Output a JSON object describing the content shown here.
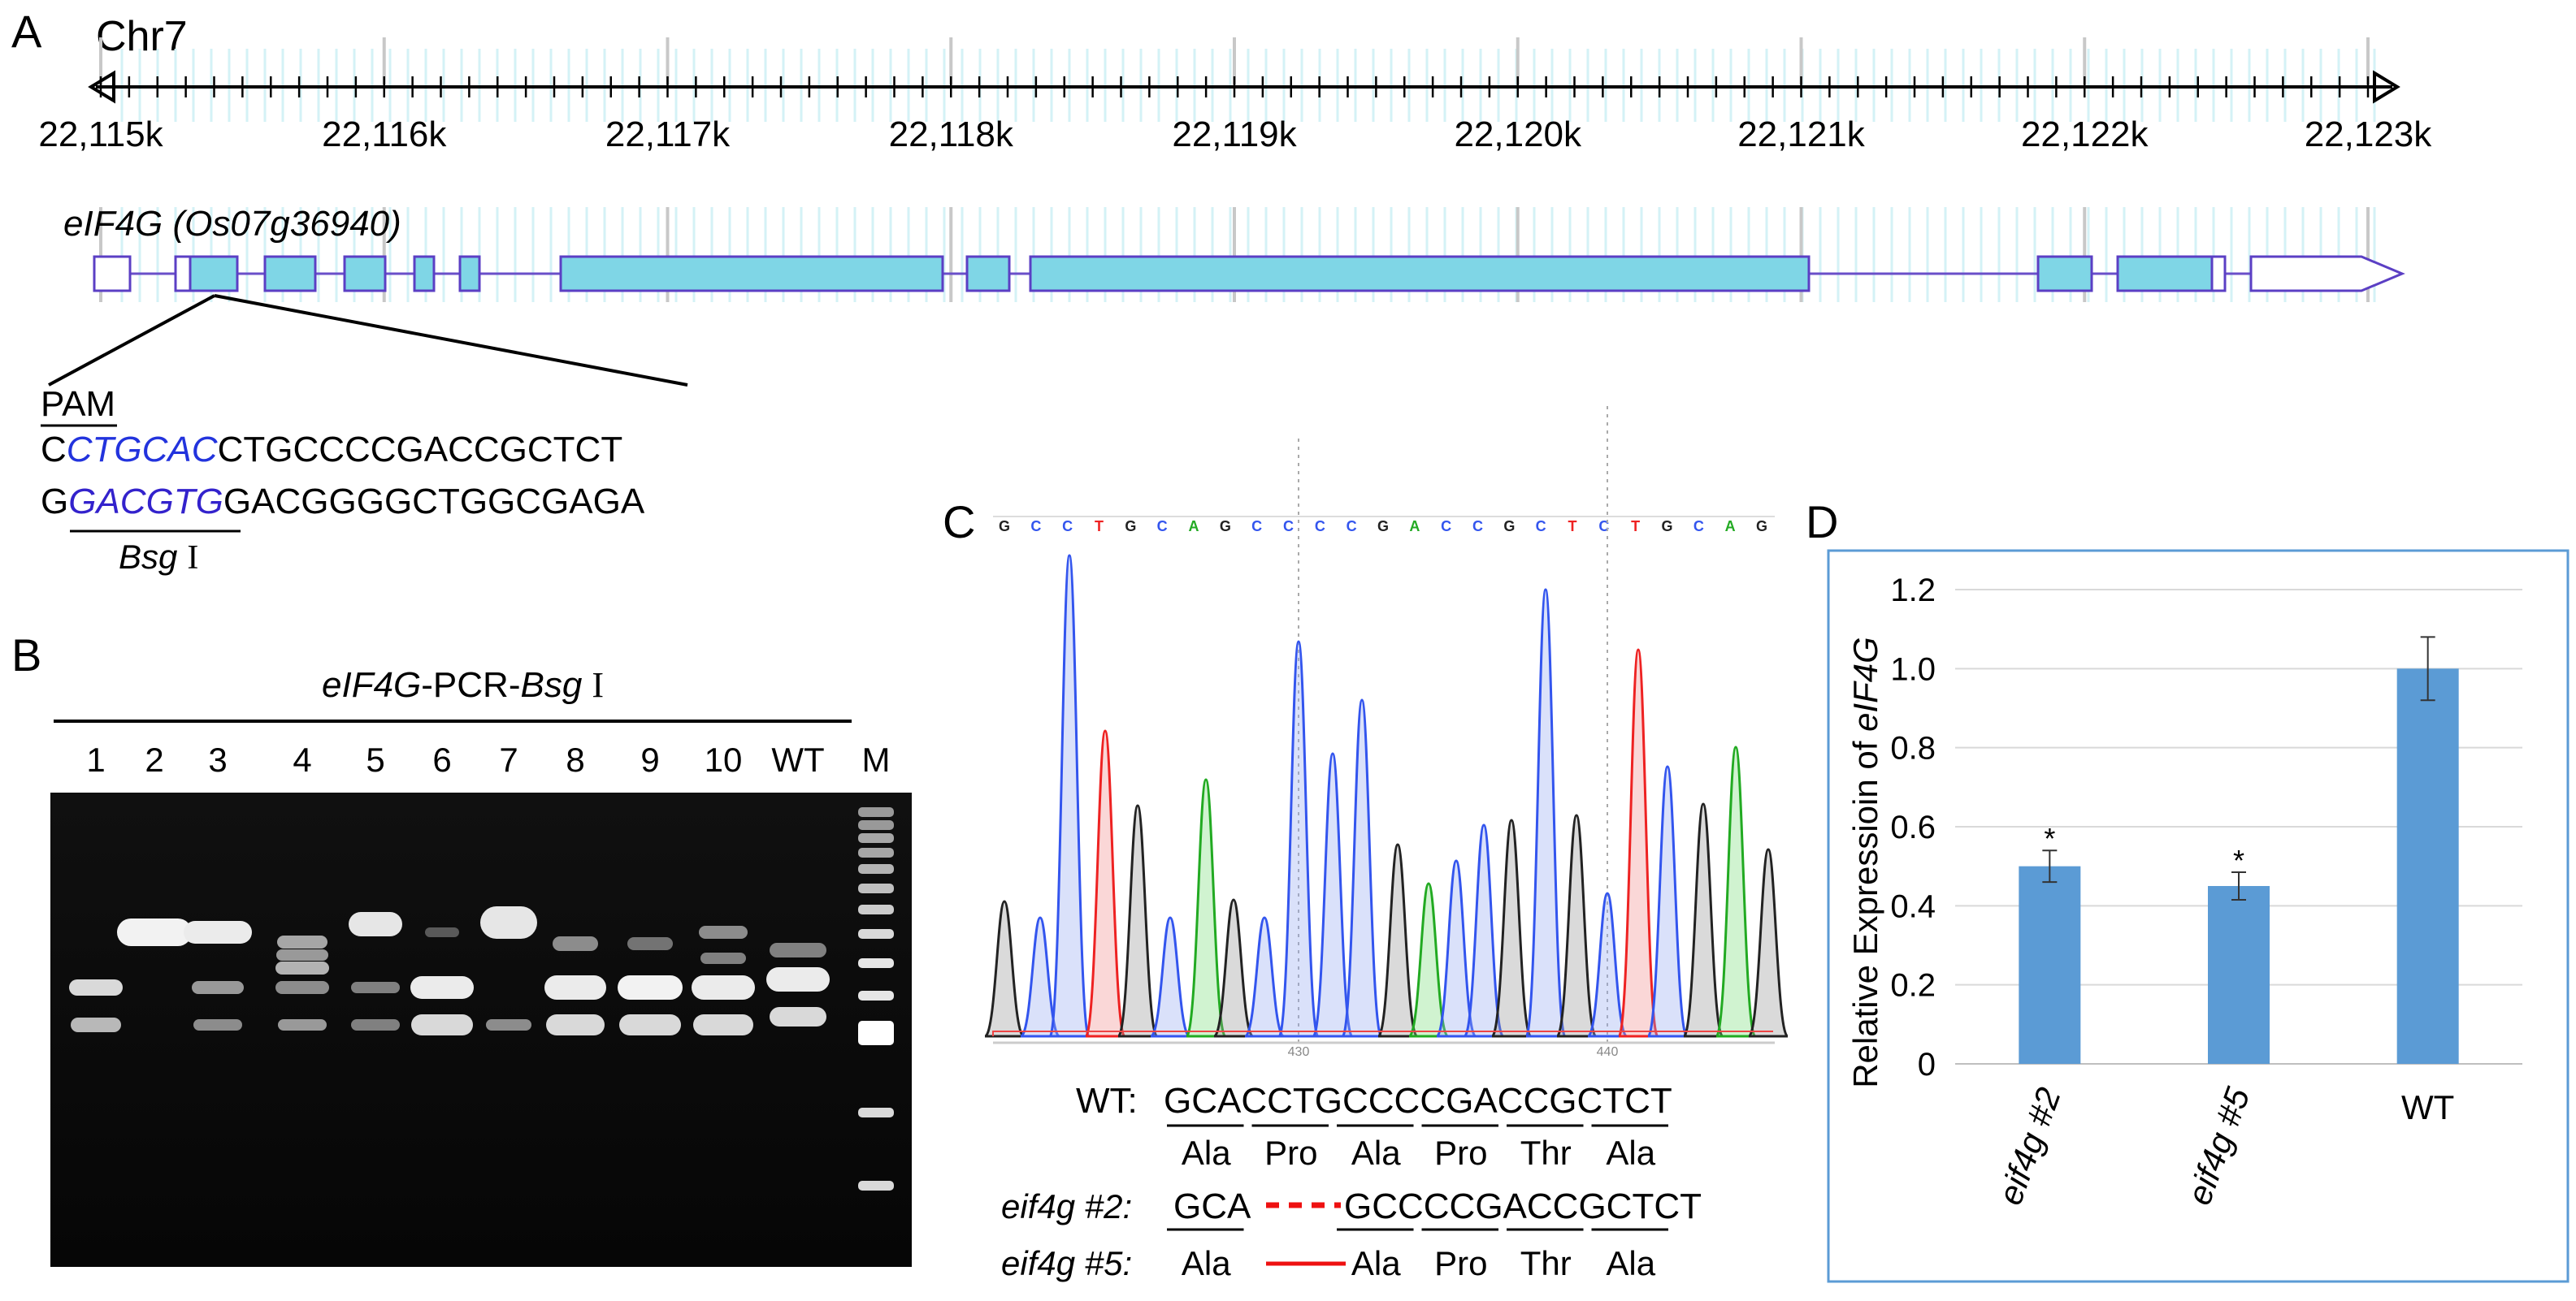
{
  "panelA": {
    "letter": "A",
    "chrom": "Chr7",
    "ticks": [
      "22,115k",
      "22,116k",
      "22,117k",
      "22,118k",
      "22,119k",
      "22,120k",
      "22,121k",
      "22,122k",
      "22,123k"
    ],
    "gene_name": "eIF4G (Os07g36940)",
    "pam_label": "PAM",
    "seq_top_prefix": "C",
    "seq_top_site": "CTGCAC",
    "seq_top_rest": "CTGCCCCGACCGCTCT",
    "seq_bot_prefix": "G",
    "seq_bot_site": "GACGTG",
    "seq_bot_rest": "GACGGGGCTGGCGAGA",
    "enzyme_label": "Bsg",
    "enzyme_suffix": "I",
    "site_color": "#2233dd"
  },
  "panelB": {
    "letter": "B",
    "title_gene": "eIF4G",
    "title_mid": "-PCR-",
    "title_enzyme": "Bsg",
    "title_suffix": "I",
    "lanes": [
      "1",
      "2",
      "3",
      "4",
      "5",
      "6",
      "7",
      "8",
      "9",
      "10",
      "WT",
      "M"
    ]
  },
  "panelC": {
    "letter": "C",
    "bases": [
      "G",
      "C",
      "C",
      "T",
      "G",
      "C",
      "A",
      "G",
      "C",
      "C",
      "C",
      "C",
      "G",
      "A",
      "C",
      "C",
      "G",
      "C",
      "T",
      "C",
      "T",
      "G",
      "C",
      "A",
      "G"
    ],
    "positions": [
      "430",
      "440"
    ],
    "wt_label": "WT:",
    "wt_seq": "GCACCTGCCCCGACCGCTCT",
    "codons": [
      "Ala",
      "Pro",
      "Ala",
      "Pro",
      "Thr",
      "Ala"
    ],
    "m2_label": "eif4g #2:",
    "m2_seq_a": "GCA",
    "m2_seq_b": "GCCCCGACCGCTCT",
    "m5_label": "eif4g #5:",
    "m5_codons": [
      "Ala",
      "Ala",
      "Pro",
      "Thr",
      "Ala"
    ],
    "deletion_color": "#ee1111"
  },
  "panelD": {
    "letter": "D",
    "chart_data": {
      "type": "bar",
      "categories": [
        "eif4g #2",
        "eif4g #5",
        "WT"
      ],
      "values": [
        0.5,
        0.45,
        1.0
      ],
      "errors": [
        0.04,
        0.035,
        0.08
      ],
      "significance": [
        "*",
        "*",
        ""
      ],
      "ylabel_prefix": "Relative Expressioin of ",
      "ylabel_gene": "eIF4G",
      "ylim": [
        0,
        1.2
      ],
      "yticks": [
        "0",
        "0.2",
        "0.4",
        "0.6",
        "0.8",
        "1.0",
        "1.2"
      ],
      "bar_color": "#5b9bd5",
      "frame_color": "#5b9bd5"
    }
  }
}
